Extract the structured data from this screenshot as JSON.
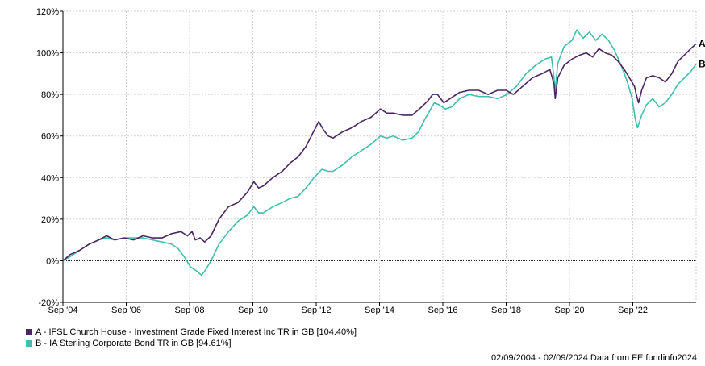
{
  "chart_data": {
    "type": "line",
    "ylim": [
      -20,
      120
    ],
    "y_ticks": [
      -20,
      0,
      20,
      40,
      60,
      80,
      100,
      120
    ],
    "y_tick_format": "%",
    "x_ticks": [
      {
        "label": "Sep '04",
        "year": 2004.67
      },
      {
        "label": "Sep '06",
        "year": 2006.67
      },
      {
        "label": "Sep '08",
        "year": 2008.67
      },
      {
        "label": "Sep '10",
        "year": 2010.67
      },
      {
        "label": "Sep '12",
        "year": 2012.67
      },
      {
        "label": "Sep '14",
        "year": 2014.67
      },
      {
        "label": "Sep '16",
        "year": 2016.67
      },
      {
        "label": "Sep '18",
        "year": 2018.67
      },
      {
        "label": "Sep '20",
        "year": 2020.67
      },
      {
        "label": "Sep '22",
        "year": 2022.67
      }
    ],
    "xlim": [
      2004.67,
      2024.67
    ],
    "grid": true,
    "series": [
      {
        "name": "A - IFSL Church House - Investment Grade Fixed Interest Inc TR in GB [104.40%]",
        "end_label": "A",
        "color": "#4b2663",
        "points": [
          [
            2004.67,
            0
          ],
          [
            2004.9,
            3
          ],
          [
            2005.2,
            5
          ],
          [
            2005.5,
            8
          ],
          [
            2005.8,
            10
          ],
          [
            2006.05,
            12
          ],
          [
            2006.3,
            10
          ],
          [
            2006.6,
            11
          ],
          [
            2006.9,
            10
          ],
          [
            2007.2,
            12
          ],
          [
            2007.5,
            11
          ],
          [
            2007.8,
            11
          ],
          [
            2008.1,
            13
          ],
          [
            2008.4,
            14
          ],
          [
            2008.6,
            12
          ],
          [
            2008.75,
            14
          ],
          [
            2008.85,
            10
          ],
          [
            2009.0,
            11
          ],
          [
            2009.15,
            9
          ],
          [
            2009.35,
            12
          ],
          [
            2009.6,
            20
          ],
          [
            2009.9,
            26
          ],
          [
            2010.2,
            28
          ],
          [
            2010.5,
            33
          ],
          [
            2010.7,
            38
          ],
          [
            2010.85,
            35
          ],
          [
            2011.0,
            36
          ],
          [
            2011.3,
            40
          ],
          [
            2011.6,
            43
          ],
          [
            2011.85,
            47
          ],
          [
            2012.1,
            50
          ],
          [
            2012.35,
            55
          ],
          [
            2012.55,
            61
          ],
          [
            2012.75,
            67
          ],
          [
            2012.9,
            63
          ],
          [
            2013.05,
            60
          ],
          [
            2013.2,
            59
          ],
          [
            2013.5,
            62
          ],
          [
            2013.8,
            64
          ],
          [
            2014.1,
            67
          ],
          [
            2014.4,
            69
          ],
          [
            2014.7,
            73
          ],
          [
            2014.9,
            71
          ],
          [
            2015.1,
            71
          ],
          [
            2015.4,
            70
          ],
          [
            2015.7,
            70
          ],
          [
            2015.85,
            72
          ],
          [
            2016.0,
            74
          ],
          [
            2016.2,
            77
          ],
          [
            2016.35,
            80
          ],
          [
            2016.5,
            80
          ],
          [
            2016.7,
            76
          ],
          [
            2016.9,
            78
          ],
          [
            2017.2,
            81
          ],
          [
            2017.5,
            82
          ],
          [
            2017.8,
            82
          ],
          [
            2018.1,
            80
          ],
          [
            2018.4,
            82
          ],
          [
            2018.67,
            82
          ],
          [
            2018.9,
            80
          ],
          [
            2019.2,
            84
          ],
          [
            2019.5,
            88
          ],
          [
            2019.8,
            90
          ],
          [
            2020.05,
            92
          ],
          [
            2020.18,
            85
          ],
          [
            2020.22,
            78
          ],
          [
            2020.3,
            88
          ],
          [
            2020.5,
            94
          ],
          [
            2020.75,
            97
          ],
          [
            2021.0,
            99
          ],
          [
            2021.2,
            100
          ],
          [
            2021.4,
            98
          ],
          [
            2021.6,
            102
          ],
          [
            2021.8,
            100
          ],
          [
            2022.0,
            99
          ],
          [
            2022.2,
            96
          ],
          [
            2022.4,
            92
          ],
          [
            2022.6,
            87
          ],
          [
            2022.72,
            84
          ],
          [
            2022.78,
            80
          ],
          [
            2022.85,
            76
          ],
          [
            2022.95,
            82
          ],
          [
            2023.1,
            88
          ],
          [
            2023.3,
            89
          ],
          [
            2023.5,
            88
          ],
          [
            2023.7,
            86
          ],
          [
            2023.9,
            90
          ],
          [
            2024.1,
            96
          ],
          [
            2024.3,
            99
          ],
          [
            2024.5,
            102
          ],
          [
            2024.67,
            104.4
          ]
        ]
      },
      {
        "name": "B - IA Sterling Corporate Bond TR in GB [94.61%]",
        "end_label": "B",
        "color": "#40bfac",
        "points": [
          [
            2004.67,
            0
          ],
          [
            2004.9,
            2
          ],
          [
            2005.2,
            5
          ],
          [
            2005.5,
            8
          ],
          [
            2005.8,
            10
          ],
          [
            2006.05,
            11
          ],
          [
            2006.3,
            10
          ],
          [
            2006.6,
            11
          ],
          [
            2006.9,
            11
          ],
          [
            2007.2,
            11
          ],
          [
            2007.5,
            10
          ],
          [
            2007.8,
            9
          ],
          [
            2008.1,
            8
          ],
          [
            2008.3,
            6
          ],
          [
            2008.5,
            2
          ],
          [
            2008.7,
            -3
          ],
          [
            2008.9,
            -5
          ],
          [
            2009.05,
            -7
          ],
          [
            2009.15,
            -5
          ],
          [
            2009.35,
            0
          ],
          [
            2009.6,
            8
          ],
          [
            2009.9,
            14
          ],
          [
            2010.2,
            19
          ],
          [
            2010.5,
            22
          ],
          [
            2010.7,
            26
          ],
          [
            2010.85,
            23
          ],
          [
            2011.0,
            23
          ],
          [
            2011.3,
            26
          ],
          [
            2011.6,
            28
          ],
          [
            2011.85,
            30
          ],
          [
            2012.1,
            31
          ],
          [
            2012.35,
            35
          ],
          [
            2012.6,
            40
          ],
          [
            2012.85,
            44
          ],
          [
            2013.05,
            43
          ],
          [
            2013.2,
            43
          ],
          [
            2013.5,
            46
          ],
          [
            2013.8,
            50
          ],
          [
            2014.1,
            53
          ],
          [
            2014.4,
            56
          ],
          [
            2014.7,
            60
          ],
          [
            2014.9,
            59
          ],
          [
            2015.1,
            60
          ],
          [
            2015.4,
            58
          ],
          [
            2015.7,
            59
          ],
          [
            2015.9,
            62
          ],
          [
            2016.1,
            68
          ],
          [
            2016.25,
            72
          ],
          [
            2016.4,
            76
          ],
          [
            2016.55,
            75
          ],
          [
            2016.75,
            73
          ],
          [
            2016.95,
            74
          ],
          [
            2017.2,
            78
          ],
          [
            2017.5,
            80
          ],
          [
            2017.8,
            79
          ],
          [
            2018.1,
            79
          ],
          [
            2018.4,
            78
          ],
          [
            2018.7,
            80
          ],
          [
            2019.0,
            84
          ],
          [
            2019.3,
            90
          ],
          [
            2019.6,
            94
          ],
          [
            2019.9,
            97
          ],
          [
            2020.1,
            98
          ],
          [
            2020.18,
            88
          ],
          [
            2020.22,
            82
          ],
          [
            2020.3,
            95
          ],
          [
            2020.5,
            103
          ],
          [
            2020.75,
            106
          ],
          [
            2020.9,
            111
          ],
          [
            2021.1,
            107
          ],
          [
            2021.3,
            110
          ],
          [
            2021.5,
            106
          ],
          [
            2021.7,
            109
          ],
          [
            2021.9,
            106
          ],
          [
            2022.1,
            101
          ],
          [
            2022.3,
            94
          ],
          [
            2022.5,
            86
          ],
          [
            2022.65,
            78
          ],
          [
            2022.75,
            68
          ],
          [
            2022.82,
            64
          ],
          [
            2022.95,
            70
          ],
          [
            2023.1,
            75
          ],
          [
            2023.3,
            78
          ],
          [
            2023.5,
            74
          ],
          [
            2023.7,
            76
          ],
          [
            2023.9,
            80
          ],
          [
            2024.1,
            85
          ],
          [
            2024.3,
            88
          ],
          [
            2024.5,
            91
          ],
          [
            2024.67,
            94.61
          ]
        ]
      }
    ]
  },
  "footer": "02/09/2004 - 02/09/2024 Data from FE fundinfo2024"
}
